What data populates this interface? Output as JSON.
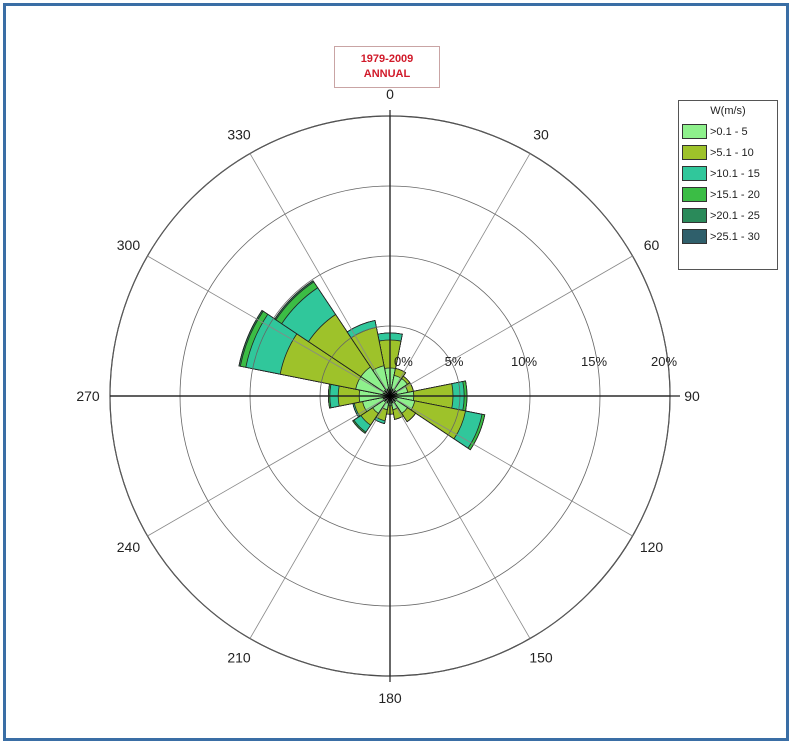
{
  "chart_data": {
    "type": "wind-rose",
    "title_line1": "1979-2009",
    "title_line2": "ANNUAL",
    "direction_labels": [
      "0",
      "30",
      "60",
      "90",
      "120",
      "150",
      "180",
      "210",
      "240",
      "270",
      "300",
      "330"
    ],
    "ring_labels": [
      "0%",
      "5%",
      "10%",
      "15%",
      "20%"
    ],
    "rlim": [
      0,
      20
    ],
    "legend_title": "W(m/s)",
    "speed_bins": [
      ">0.1 - 5",
      ">5.1 - 10",
      ">10.1 - 15",
      ">15.1 - 20",
      ">20.1 - 25",
      ">25.1 - 30"
    ],
    "colors": [
      "#8ef08c",
      "#9ec22a",
      "#30c79b",
      "#3bbd45",
      "#2a8a5a",
      "#2f5f6b"
    ],
    "sector_width_deg": 22.5,
    "sectors": [
      {
        "direction": 0,
        "cumulative": [
          2.0,
          4.0,
          4.5,
          4.5,
          4.5,
          4.5
        ]
      },
      {
        "direction": 22.5,
        "cumulative": [
          1.5,
          2.0,
          2.0,
          2.0,
          2.0,
          2.0
        ]
      },
      {
        "direction": 45,
        "cumulative": [
          1.5,
          1.7,
          1.7,
          1.7,
          1.7,
          1.7
        ]
      },
      {
        "direction": 67.5,
        "cumulative": [
          1.3,
          1.7,
          1.7,
          1.7,
          1.7,
          1.7
        ]
      },
      {
        "direction": 90,
        "cumulative": [
          1.7,
          4.5,
          5.3,
          5.5,
          5.5,
          5.5
        ]
      },
      {
        "direction": 112.5,
        "cumulative": [
          1.8,
          5.5,
          6.7,
          6.9,
          6.9,
          6.9
        ]
      },
      {
        "direction": 135,
        "cumulative": [
          1.5,
          2.2,
          2.2,
          2.2,
          2.2,
          2.2
        ]
      },
      {
        "direction": 157.5,
        "cumulative": [
          1.0,
          1.7,
          1.7,
          1.7,
          1.7,
          1.7
        ]
      },
      {
        "direction": 180,
        "cumulative": [
          0.7,
          1.3,
          1.3,
          1.3,
          1.3,
          1.3
        ]
      },
      {
        "direction": 202.5,
        "cumulative": [
          1.0,
          1.8,
          2.0,
          2.0,
          2.0,
          2.0
        ]
      },
      {
        "direction": 225,
        "cumulative": [
          1.5,
          2.5,
          3.1,
          3.2,
          3.2,
          3.2
        ]
      },
      {
        "direction": 247.5,
        "cumulative": [
          2.0,
          2.6,
          2.7,
          2.7,
          2.7,
          2.7
        ]
      },
      {
        "direction": 270,
        "cumulative": [
          2.2,
          3.7,
          4.3,
          4.4,
          4.4,
          4.4
        ]
      },
      {
        "direction": 292.5,
        "cumulative": [
          2.5,
          8.0,
          10.5,
          10.9,
          11.0,
          11.0
        ]
      },
      {
        "direction": 315,
        "cumulative": [
          2.5,
          7.0,
          9.3,
          9.8,
          9.9,
          9.9
        ]
      },
      {
        "direction": 337.5,
        "cumulative": [
          2.2,
          5.0,
          5.5,
          5.5,
          5.5,
          5.5
        ]
      }
    ]
  }
}
